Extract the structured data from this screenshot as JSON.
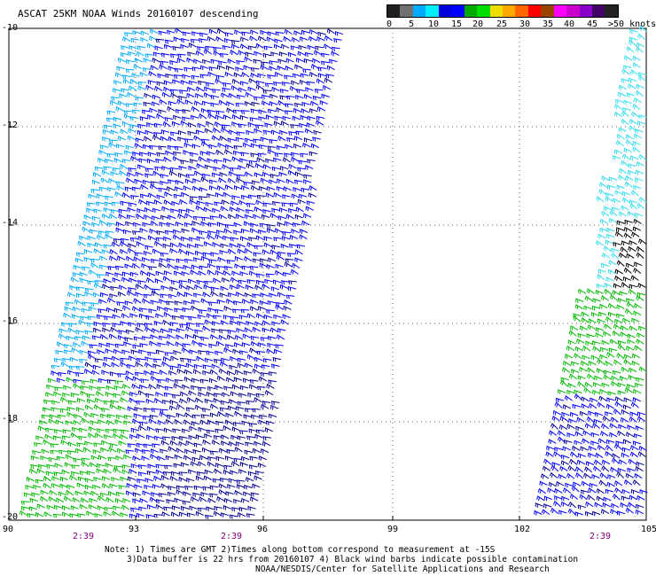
{
  "title": "ASCAT 25KM NOAA Winds 20160107 descending",
  "legend": {
    "colors": [
      "#202020",
      "#707070",
      "#00aaff",
      "#00eeff",
      "#0000dd",
      "#0000ff",
      "#00aa00",
      "#00dd00",
      "#eedd00",
      "#ffaa00",
      "#ff6600",
      "#ff0000",
      "#994400",
      "#ff00ff",
      "#cc00cc",
      "#8800cc",
      "#440066",
      "#222222"
    ],
    "labels": [
      "0",
      "5",
      "10",
      "15",
      "20",
      "25",
      "30",
      "35",
      "40",
      "45",
      ">50 knots"
    ]
  },
  "lat_labels": [
    "-10",
    "-12",
    "-14",
    "-16",
    "-18",
    "-20"
  ],
  "lon_labels": [
    "90",
    "93",
    "96",
    "99",
    "102",
    "105"
  ],
  "time_labels": [
    "2:39",
    "2:39",
    "2:39"
  ],
  "notes": [
    "Note: 1) Times are GMT 2)Times along bottom correspond to measurement at -15S",
    "3)Data buffer is 22 hrs from 20160107 4) Black wind barbs indicate possible contamination",
    "NOAA/NESDIS/Center for Satellite Applications and Research"
  ],
  "barb_colors": {
    "light_blue": "#00aaff",
    "cyan": "#33ddee",
    "blue": "#0000ff",
    "dark_blue": "#000099",
    "green": "#00bb00",
    "black": "#000000"
  }
}
